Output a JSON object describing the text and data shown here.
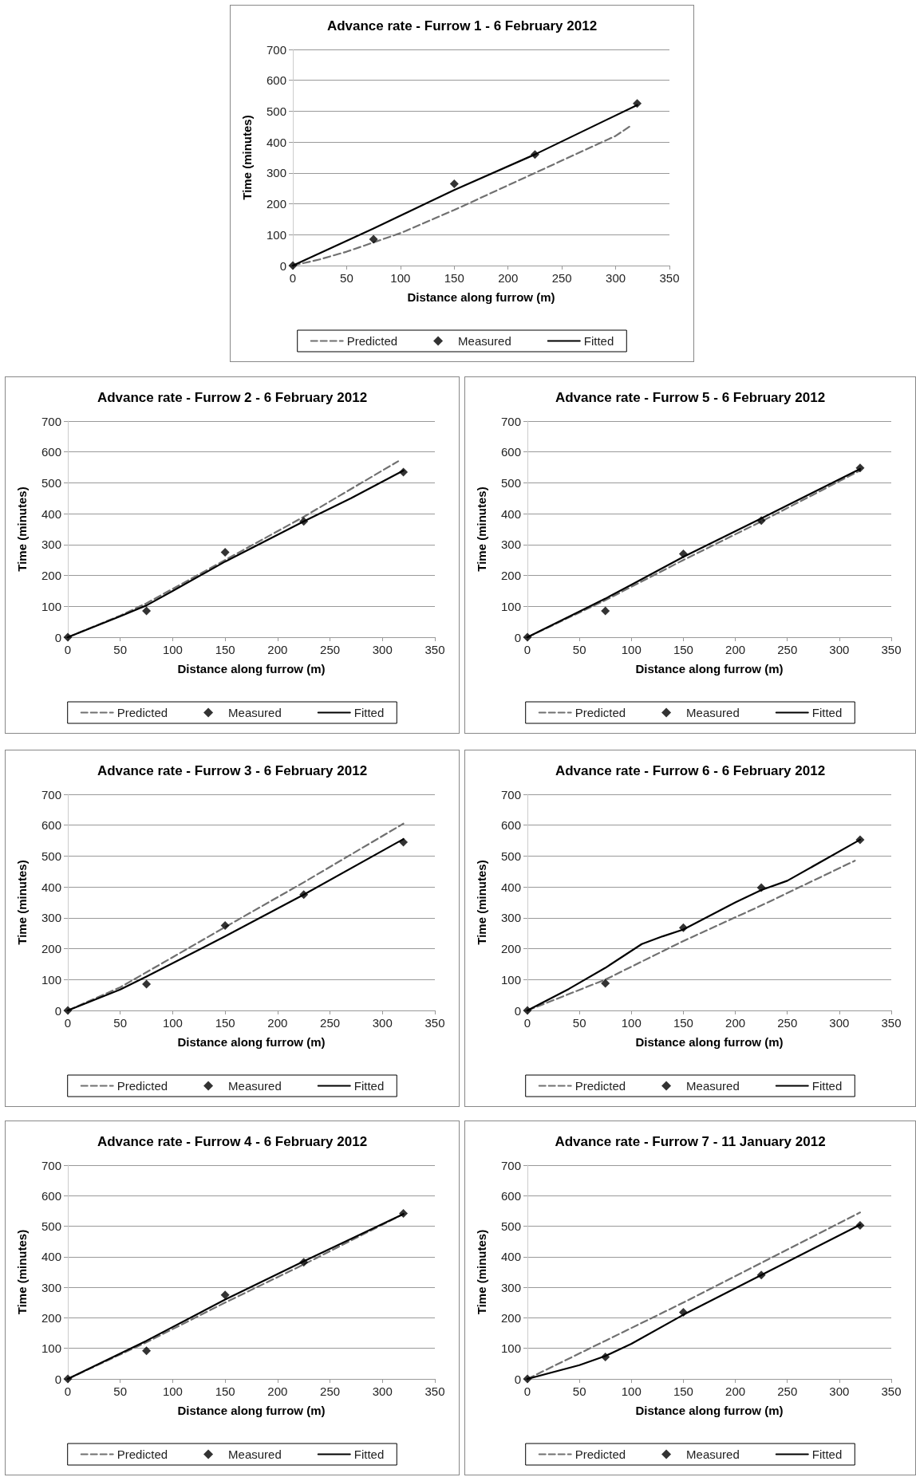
{
  "chart_data": [
    {
      "type": "line",
      "title": "Advance rate - Furrow 1 - 6 February 2012",
      "xlabel": "Distance along furrow (m)",
      "ylabel": "Time (minutes)",
      "xlim": [
        0,
        350
      ],
      "ylim": [
        0,
        700
      ],
      "xticks": [
        0,
        50,
        100,
        150,
        200,
        250,
        300,
        350
      ],
      "yticks": [
        0,
        100,
        200,
        300,
        400,
        500,
        600,
        700
      ],
      "grid": "y",
      "legend": "bottom",
      "series": [
        {
          "name": "Predicted",
          "type": "line",
          "color": "#707070",
          "line_style": "dashed",
          "marker": "none",
          "x": [
            0,
            25,
            50,
            75,
            100,
            150,
            200,
            250,
            300,
            315
          ],
          "values": [
            0,
            20,
            45,
            75,
            105,
            180,
            260,
            340,
            420,
            455
          ]
        },
        {
          "name": "Measured",
          "type": "scatter",
          "color": "#000000",
          "marker": "diamond",
          "x": [
            0,
            75,
            150,
            225,
            320
          ],
          "values": [
            0,
            85,
            265,
            360,
            525
          ]
        },
        {
          "name": "Fitted",
          "type": "line",
          "color": "#000000",
          "line_style": "solid",
          "marker": "none",
          "x": [
            0,
            75,
            150,
            225,
            320
          ],
          "values": [
            0,
            120,
            245,
            360,
            520
          ]
        }
      ]
    },
    {
      "type": "line",
      "title": "Advance rate - Furrow 2 - 6 February 2012",
      "xlabel": "Distance along furrow (m)",
      "ylabel": "Time (minutes)",
      "xlim": [
        0,
        350
      ],
      "ylim": [
        0,
        700
      ],
      "xticks": [
        0,
        50,
        100,
        150,
        200,
        250,
        300,
        350
      ],
      "yticks": [
        0,
        100,
        200,
        300,
        400,
        500,
        600,
        700
      ],
      "grid": "y",
      "legend": "bottom",
      "series": [
        {
          "name": "Predicted",
          "type": "line",
          "color": "#707070",
          "line_style": "dashed",
          "marker": "none",
          "x": [
            0,
            50,
            75,
            150,
            225,
            315
          ],
          "values": [
            0,
            70,
            110,
            250,
            390,
            570
          ]
        },
        {
          "name": "Measured",
          "type": "scatter",
          "color": "#000000",
          "marker": "diamond",
          "x": [
            0,
            75,
            150,
            225,
            320
          ],
          "values": [
            0,
            85,
            275,
            375,
            535
          ]
        },
        {
          "name": "Fitted",
          "type": "line",
          "color": "#000000",
          "line_style": "solid",
          "marker": "none",
          "x": [
            0,
            50,
            75,
            100,
            150,
            225,
            270,
            320
          ],
          "values": [
            0,
            68,
            103,
            150,
            245,
            375,
            450,
            540
          ]
        }
      ]
    },
    {
      "type": "line",
      "title": "Advance rate - Furrow 5 - 6 February 2012",
      "xlabel": "Distance along furrow (m)",
      "ylabel": "Time (minutes)",
      "xlim": [
        0,
        350
      ],
      "ylim": [
        0,
        700
      ],
      "xticks": [
        0,
        50,
        100,
        150,
        200,
        250,
        300,
        350
      ],
      "yticks": [
        0,
        100,
        200,
        300,
        400,
        500,
        600,
        700
      ],
      "grid": "y",
      "legend": "bottom",
      "series": [
        {
          "name": "Predicted",
          "type": "line",
          "color": "#707070",
          "line_style": "dashed",
          "marker": "none",
          "x": [
            0,
            75,
            150,
            225,
            320
          ],
          "values": [
            0,
            120,
            250,
            375,
            540
          ]
        },
        {
          "name": "Measured",
          "type": "scatter",
          "color": "#000000",
          "marker": "diamond",
          "x": [
            0,
            75,
            150,
            225,
            320
          ],
          "values": [
            0,
            85,
            270,
            378,
            548
          ]
        },
        {
          "name": "Fitted",
          "type": "line",
          "color": "#000000",
          "line_style": "solid",
          "marker": "none",
          "x": [
            0,
            75,
            100,
            150,
            225,
            320
          ],
          "values": [
            0,
            125,
            170,
            260,
            385,
            545
          ]
        }
      ]
    },
    {
      "type": "line",
      "title": "Advance rate - Furrow 3 - 6 February 2012",
      "xlabel": "Distance along furrow (m)",
      "ylabel": "Time (minutes)",
      "xlim": [
        0,
        350
      ],
      "ylim": [
        0,
        700
      ],
      "xticks": [
        0,
        50,
        100,
        150,
        200,
        250,
        300,
        350
      ],
      "yticks": [
        0,
        100,
        200,
        300,
        400,
        500,
        600,
        700
      ],
      "grid": "y",
      "legend": "bottom",
      "series": [
        {
          "name": "Predicted",
          "type": "line",
          "color": "#707070",
          "line_style": "dashed",
          "marker": "none",
          "x": [
            0,
            50,
            150,
            225,
            320
          ],
          "values": [
            0,
            75,
            270,
            415,
            605
          ]
        },
        {
          "name": "Measured",
          "type": "scatter",
          "color": "#000000",
          "marker": "diamond",
          "x": [
            0,
            75,
            150,
            225,
            320
          ],
          "values": [
            0,
            85,
            275,
            375,
            545
          ]
        },
        {
          "name": "Fitted",
          "type": "line",
          "color": "#000000",
          "line_style": "solid",
          "marker": "none",
          "x": [
            0,
            50,
            75,
            150,
            225,
            320
          ],
          "values": [
            0,
            68,
            110,
            240,
            375,
            555
          ]
        }
      ]
    },
    {
      "type": "line",
      "title": "Advance rate - Furrow 6 - 6 February 2012",
      "xlabel": "Distance along furrow (m)",
      "ylabel": "Time (minutes)",
      "xlim": [
        0,
        350
      ],
      "ylim": [
        0,
        700
      ],
      "xticks": [
        0,
        50,
        100,
        150,
        200,
        250,
        300,
        350
      ],
      "yticks": [
        0,
        100,
        200,
        300,
        400,
        500,
        600,
        700
      ],
      "grid": "y",
      "legend": "bottom",
      "series": [
        {
          "name": "Predicted",
          "type": "line",
          "color": "#707070",
          "line_style": "dashed",
          "marker": "none",
          "x": [
            0,
            75,
            150,
            225,
            315
          ],
          "values": [
            0,
            100,
            225,
            340,
            485
          ]
        },
        {
          "name": "Measured",
          "type": "scatter",
          "color": "#000000",
          "marker": "diamond",
          "x": [
            0,
            75,
            150,
            225,
            320
          ],
          "values": [
            0,
            88,
            268,
            398,
            553
          ]
        },
        {
          "name": "Fitted",
          "type": "line",
          "color": "#000000",
          "line_style": "solid",
          "marker": "none",
          "x": [
            0,
            40,
            75,
            110,
            130,
            150,
            200,
            225,
            250,
            320
          ],
          "values": [
            0,
            70,
            138,
            215,
            240,
            262,
            350,
            390,
            420,
            553
          ]
        }
      ]
    },
    {
      "type": "line",
      "title": "Advance rate - Furrow 4 - 6 February 2012",
      "xlabel": "Distance along furrow (m)",
      "ylabel": "Time (minutes)",
      "xlim": [
        0,
        350
      ],
      "ylim": [
        0,
        700
      ],
      "xticks": [
        0,
        50,
        100,
        150,
        200,
        250,
        300,
        350
      ],
      "yticks": [
        0,
        100,
        200,
        300,
        400,
        500,
        600,
        700
      ],
      "grid": "y",
      "legend": "bottom",
      "series": [
        {
          "name": "Predicted",
          "type": "line",
          "color": "#707070",
          "line_style": "dashed",
          "marker": "none",
          "x": [
            0,
            75,
            150,
            225,
            320
          ],
          "values": [
            0,
            120,
            250,
            375,
            540
          ]
        },
        {
          "name": "Measured",
          "type": "scatter",
          "color": "#000000",
          "marker": "diamond",
          "x": [
            0,
            75,
            150,
            225,
            320
          ],
          "values": [
            0,
            92,
            275,
            382,
            542
          ]
        },
        {
          "name": "Fitted",
          "type": "line",
          "color": "#000000",
          "line_style": "solid",
          "marker": "none",
          "x": [
            0,
            75,
            150,
            225,
            320
          ],
          "values": [
            0,
            125,
            260,
            385,
            540
          ]
        }
      ]
    },
    {
      "type": "line",
      "title": "Advance rate - Furrow 7 - 11 January 2012",
      "xlabel": "Distance along furrow (m)",
      "ylabel": "Time (minutes)",
      "xlim": [
        0,
        350
      ],
      "ylim": [
        0,
        700
      ],
      "xticks": [
        0,
        50,
        100,
        150,
        200,
        250,
        300,
        350
      ],
      "yticks": [
        0,
        100,
        200,
        300,
        400,
        500,
        600,
        700
      ],
      "grid": "y",
      "legend": "bottom",
      "series": [
        {
          "name": "Predicted",
          "type": "line",
          "color": "#707070",
          "line_style": "dashed",
          "marker": "none",
          "x": [
            0,
            75,
            150,
            225,
            320
          ],
          "values": [
            0,
            125,
            250,
            380,
            545
          ]
        },
        {
          "name": "Measured",
          "type": "scatter",
          "color": "#000000",
          "marker": "diamond",
          "x": [
            0,
            75,
            150,
            225,
            320
          ],
          "values": [
            0,
            72,
            218,
            340,
            503
          ]
        },
        {
          "name": "Fitted",
          "type": "line",
          "color": "#000000",
          "line_style": "solid",
          "marker": "none",
          "x": [
            0,
            50,
            75,
            100,
            150,
            225,
            320
          ],
          "values": [
            0,
            45,
            75,
            115,
            210,
            340,
            505
          ]
        }
      ]
    }
  ]
}
